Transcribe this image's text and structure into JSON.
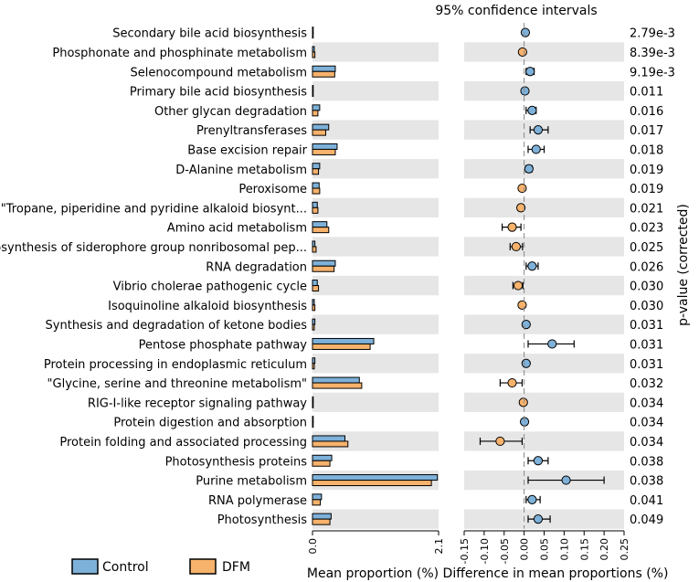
{
  "chart_data": {
    "type": "extended_error_bar",
    "title": "95% confidence intervals",
    "colors": {
      "control": "#7eb1d9",
      "dfm": "#f7b26c",
      "band": "#e6e6e6",
      "edge": "#000000"
    },
    "legend": {
      "control": "Control",
      "dfm": "DFM"
    },
    "mean_panel": {
      "xlabel": "Mean proportion (%)",
      "xlim": [
        0.0,
        2.1
      ],
      "ticks": [
        "0.0",
        "2.1"
      ]
    },
    "diff_panel": {
      "xlabel": "Difference in mean proportions (%)",
      "xlim": [
        -0.15,
        0.25
      ],
      "tick_values": [
        -0.15,
        -0.1,
        -0.05,
        0.0,
        0.05,
        0.1,
        0.15,
        0.2,
        0.25
      ],
      "ticks": [
        "-0.15",
        "-0.10",
        "-0.05",
        "0.00",
        "0.05",
        "0.10",
        "0.15",
        "0.20",
        "0.25"
      ]
    },
    "pvalue_label": "p-value (corrected)",
    "rows": [
      {
        "pathway": "Secondary bile acid biosynthesis",
        "control": 0.01,
        "dfm": 0.005,
        "diff": 0.003,
        "ci": [
          0.001,
          0.006
        ],
        "p": "2.79e-3"
      },
      {
        "pathway": "Phosphonate and phosphinate metabolism",
        "control": 0.03,
        "dfm": 0.04,
        "diff": -0.004,
        "ci": [
          -0.007,
          -0.001
        ],
        "p": "8.39e-3"
      },
      {
        "pathway": "Selenocompound metabolism",
        "control": 0.38,
        "dfm": 0.37,
        "diff": 0.015,
        "ci": [
          0.005,
          0.025
        ],
        "p": "9.19e-3"
      },
      {
        "pathway": "Primary bile acid biosynthesis",
        "control": 0.01,
        "dfm": 0.004,
        "diff": 0.002,
        "ci": [
          0.0005,
          0.004
        ],
        "p": "0.011"
      },
      {
        "pathway": "Other glycan degradation",
        "control": 0.12,
        "dfm": 0.09,
        "diff": 0.02,
        "ci": [
          0.005,
          0.03
        ],
        "p": "0.016"
      },
      {
        "pathway": "Prenyltransferases",
        "control": 0.27,
        "dfm": 0.22,
        "diff": 0.035,
        "ci": [
          0.015,
          0.06
        ],
        "p": "0.017"
      },
      {
        "pathway": "Base excision repair",
        "control": 0.41,
        "dfm": 0.38,
        "diff": 0.03,
        "ci": [
          0.01,
          0.05
        ],
        "p": "0.018"
      },
      {
        "pathway": "D-Alanine metabolism",
        "control": 0.12,
        "dfm": 0.1,
        "diff": 0.012,
        "ci": [
          0.004,
          0.02
        ],
        "p": "0.019"
      },
      {
        "pathway": "Peroxisome",
        "control": 0.11,
        "dfm": 0.12,
        "diff": -0.005,
        "ci": [
          -0.01,
          -0.001
        ],
        "p": "0.019"
      },
      {
        "pathway": "\"Tropane, piperidine and pyridine alkaloid biosynt...",
        "control": 0.08,
        "dfm": 0.09,
        "diff": -0.008,
        "ci": [
          -0.014,
          -0.002
        ],
        "p": "0.021"
      },
      {
        "pathway": "Amino acid metabolism",
        "control": 0.24,
        "dfm": 0.27,
        "diff": -0.03,
        "ci": [
          -0.055,
          -0.008
        ],
        "p": "0.023"
      },
      {
        "pathway": "Biosynthesis of siderophore group nonribosomal pep...",
        "control": 0.04,
        "dfm": 0.06,
        "diff": -0.02,
        "ci": [
          -0.035,
          -0.004
        ],
        "p": "0.025"
      },
      {
        "pathway": "RNA degradation",
        "control": 0.38,
        "dfm": 0.36,
        "diff": 0.02,
        "ci": [
          0.005,
          0.035
        ],
        "p": "0.026"
      },
      {
        "pathway": "Vibrio cholerae pathogenic cycle",
        "control": 0.08,
        "dfm": 0.1,
        "diff": -0.015,
        "ci": [
          -0.028,
          -0.003
        ],
        "p": "0.030"
      },
      {
        "pathway": "Isoquinoline alkaloid biosynthesis",
        "control": 0.03,
        "dfm": 0.04,
        "diff": -0.005,
        "ci": [
          -0.009,
          -0.001
        ],
        "p": "0.030"
      },
      {
        "pathway": "Synthesis and degradation of ketone bodies",
        "control": 0.04,
        "dfm": 0.03,
        "diff": 0.005,
        "ci": [
          0.001,
          0.009
        ],
        "p": "0.031"
      },
      {
        "pathway": "Pentose phosphate pathway",
        "control": 1.02,
        "dfm": 0.96,
        "diff": 0.07,
        "ci": [
          0.01,
          0.125
        ],
        "p": "0.031"
      },
      {
        "pathway": "Protein processing in endoplasmic reticulum",
        "control": 0.04,
        "dfm": 0.03,
        "diff": 0.005,
        "ci": [
          0.001,
          0.009
        ],
        "p": "0.031"
      },
      {
        "pathway": "\"Glycine, serine and threonine metabolism\"",
        "control": 0.78,
        "dfm": 0.82,
        "diff": -0.03,
        "ci": [
          -0.06,
          -0.005
        ],
        "p": "0.032"
      },
      {
        "pathway": "RIG-I-like receptor signaling pathway",
        "control": 0.005,
        "dfm": 0.008,
        "diff": -0.002,
        "ci": [
          -0.004,
          -0.0005
        ],
        "p": "0.034"
      },
      {
        "pathway": "Protein digestion and absorption",
        "control": 0.005,
        "dfm": 0.003,
        "diff": 0.001,
        "ci": [
          0.0003,
          0.002
        ],
        "p": "0.034"
      },
      {
        "pathway": "Protein folding and associated processing",
        "control": 0.54,
        "dfm": 0.59,
        "diff": -0.06,
        "ci": [
          -0.11,
          -0.005
        ],
        "p": "0.034"
      },
      {
        "pathway": "Photosynthesis proteins",
        "control": 0.32,
        "dfm": 0.29,
        "diff": 0.035,
        "ci": [
          0.01,
          0.06
        ],
        "p": "0.038"
      },
      {
        "pathway": "Purine metabolism",
        "control": 2.08,
        "dfm": 1.98,
        "diff": 0.105,
        "ci": [
          0.01,
          0.2
        ],
        "p": "0.038"
      },
      {
        "pathway": "RNA polymerase",
        "control": 0.15,
        "dfm": 0.13,
        "diff": 0.02,
        "ci": [
          0.005,
          0.04
        ],
        "p": "0.041"
      },
      {
        "pathway": "Photosynthesis",
        "control": 0.31,
        "dfm": 0.29,
        "diff": 0.035,
        "ci": [
          0.01,
          0.065
        ],
        "p": "0.049"
      }
    ]
  }
}
